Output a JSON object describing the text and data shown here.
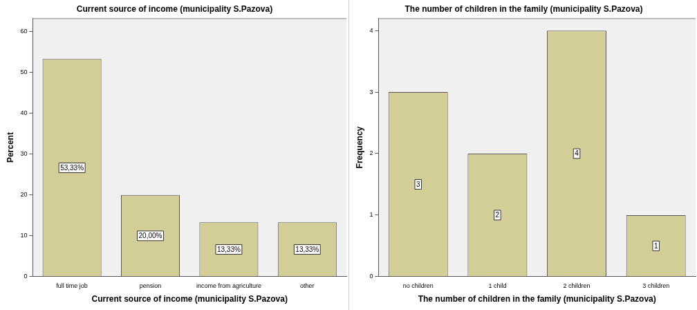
{
  "chart_data": [
    {
      "type": "bar",
      "title": "Current source of income (municipality S.Pazova)",
      "xlabel": "Current source of income (municipality S.Pazova)",
      "ylabel": "Percent",
      "categories": [
        "full time job",
        "pension",
        "income from agriculture",
        "other"
      ],
      "values": [
        53.33,
        20,
        13.33,
        13.33
      ],
      "value_labels": [
        "53,33%",
        "20,00%",
        "13,33%",
        "13,33%"
      ],
      "color": "#d3ce97",
      "ylim": [
        0,
        63.3
      ],
      "yticks": [
        0,
        10,
        20,
        30,
        40,
        50,
        60
      ],
      "grid": false,
      "legend": false
    },
    {
      "type": "bar",
      "title": "The number of children in the family (municipality S.Pazova)",
      "xlabel": "The number of children in the family (municipality S.Pazova)",
      "ylabel": "Frequency",
      "categories": [
        "no children",
        "1 child",
        "2 children",
        "3 children"
      ],
      "values": [
        3,
        2,
        4,
        1
      ],
      "data_labels": true,
      "color": "#d3ce97",
      "ylim": [
        0,
        4.2
      ],
      "yticks": [
        0,
        1,
        2,
        3,
        4
      ],
      "grid": false,
      "legend": false
    }
  ]
}
